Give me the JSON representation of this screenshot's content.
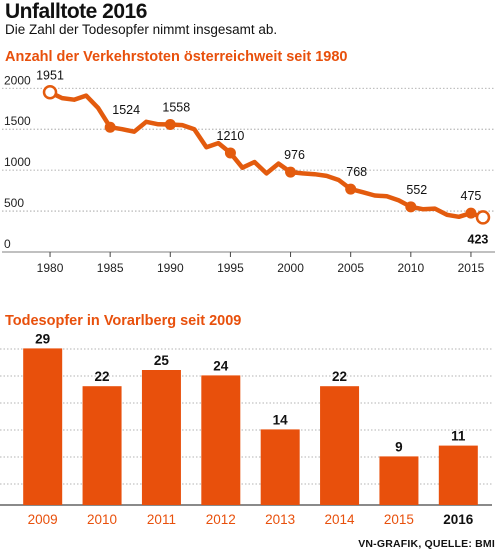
{
  "header": {
    "title": "Unfalltote 2016",
    "subtitle": "Die Zahl der Todesopfer nimmt insgesamt ab."
  },
  "credit": "VN-GRAFIK, QUELLE: BMI",
  "colors": {
    "accent": "#e35b0e",
    "bar": "#e8500c",
    "grid": "#9a9a9a",
    "title_orange": "#e8500c"
  },
  "chart_data": [
    {
      "type": "line",
      "title": "Anzahl der Verkehrstoten österreichweit seit 1980",
      "xlabel": "",
      "ylabel": "",
      "xlim": [
        1979,
        2017
      ],
      "ylim": [
        0,
        2150
      ],
      "x_ticks": [
        "1980",
        "1985",
        "1990",
        "1995",
        "2000",
        "2005",
        "2010",
        "2015"
      ],
      "y_ticks": [
        "0",
        "500",
        "1000",
        "1500",
        "2000"
      ],
      "grid": true,
      "series": [
        {
          "x": [
            1980,
            1981,
            1982,
            1983,
            1984,
            1985,
            1986,
            1987,
            1988,
            1989,
            1990,
            1991,
            1992,
            1993,
            1994,
            1995,
            1996,
            1997,
            1998,
            1999,
            2000,
            2001,
            2002,
            2003,
            2004,
            2005,
            2006,
            2007,
            2008,
            2009,
            2010,
            2011,
            2012,
            2013,
            2014,
            2015,
            2016
          ],
          "values": [
            1951,
            1880,
            1860,
            1910,
            1760,
            1524,
            1500,
            1470,
            1590,
            1560,
            1558,
            1550,
            1500,
            1280,
            1330,
            1210,
            1030,
            1100,
            960,
            1080,
            976,
            960,
            950,
            930,
            880,
            768,
            730,
            690,
            680,
            630,
            552,
            523,
            530,
            455,
            430,
            475,
            423
          ]
        }
      ],
      "annotations": [
        {
          "x": 1980,
          "label": "1951",
          "marker": "hollow"
        },
        {
          "x": 1985,
          "label": "1524",
          "marker": "filled"
        },
        {
          "x": 1990,
          "label": "1558",
          "marker": "filled"
        },
        {
          "x": 1995,
          "label": "1210",
          "marker": "filled"
        },
        {
          "x": 2000,
          "label": "976",
          "marker": "filled"
        },
        {
          "x": 2005,
          "label": "768",
          "marker": "filled"
        },
        {
          "x": 2010,
          "label": "552",
          "marker": "filled"
        },
        {
          "x": 2015,
          "label": "475",
          "marker": "filled"
        },
        {
          "x": 2016,
          "label": "423",
          "marker": "hollow"
        }
      ]
    },
    {
      "type": "bar",
      "title": "Todesopfer in Vorarlberg seit 2009",
      "xlabel": "",
      "ylabel": "",
      "categories": [
        "2009",
        "2010",
        "2011",
        "2012",
        "2013",
        "2014",
        "2015",
        "2016"
      ],
      "values": [
        29,
        22,
        25,
        24,
        14,
        22,
        9,
        11
      ],
      "ylim": [
        0,
        30
      ],
      "grid": true,
      "highlight_category": "2016"
    }
  ]
}
